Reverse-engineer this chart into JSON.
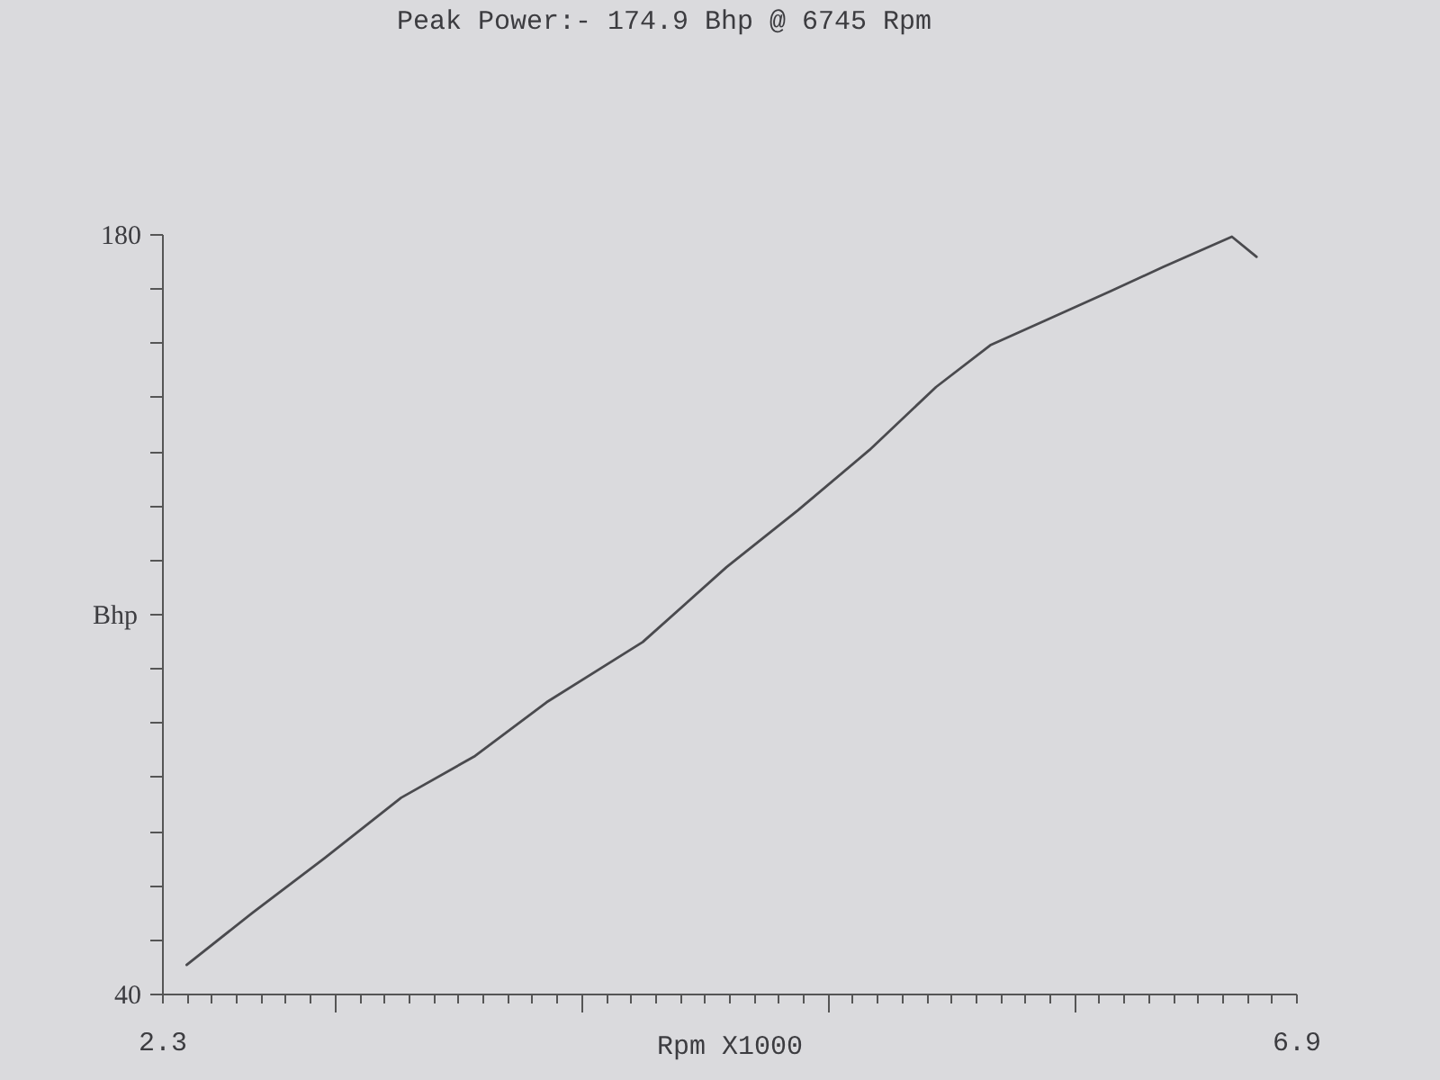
{
  "chart_data": {
    "type": "line",
    "title": "Peak Power:- 174.9 Bhp @ 6745 Rpm",
    "xlabel": "Rpm X1000",
    "ylabel": "Bhp",
    "x": [
      2.4,
      2.67,
      2.96,
      3.27,
      3.57,
      3.86,
      4.25,
      4.59,
      4.88,
      5.17,
      5.44,
      5.66,
      5.88,
      6.15,
      6.36,
      6.53,
      6.64,
      6.74
    ],
    "series": [
      {
        "color": "#4a4a4e",
        "values": [
          45.3,
          55.0,
          65.0,
          76.1,
          83.8,
          93.7,
          104.8,
          118.6,
          129.1,
          140.2,
          151.8,
          159.5,
          164.0,
          169.5,
          173.9,
          177.3,
          179.5,
          175.8
        ]
      }
    ],
    "xlim": [
      2.3,
      6.9
    ],
    "ylim": [
      40,
      180
    ],
    "xticks": [
      2.3,
      {
        "value": 2.4,
        "label": null
      },
      {
        "value": 2.5,
        "label": null
      },
      {
        "value": 2.6,
        "label": null
      },
      {
        "value": 2.7,
        "label": null
      },
      {
        "value": 2.8,
        "label": null
      },
      {
        "value": 2.9,
        "label": null
      },
      {
        "value": 3,
        "label": null
      },
      {
        "value": 3.1,
        "label": null
      },
      {
        "value": 3.2,
        "label": null
      },
      {
        "value": 3.3,
        "label": null
      },
      {
        "value": 3.4,
        "label": null
      },
      {
        "value": 3.5,
        "label": null
      },
      {
        "value": 3.6,
        "label": null
      },
      {
        "value": 3.7,
        "label": null
      },
      {
        "value": 3.8,
        "label": null
      },
      {
        "value": 3.9,
        "label": null
      },
      {
        "value": 4,
        "label": null
      },
      {
        "value": 4.1,
        "label": null
      },
      {
        "value": 4.2,
        "label": null
      },
      {
        "value": 4.3,
        "label": null
      },
      {
        "value": 4.4,
        "label": null
      },
      {
        "value": 4.5,
        "label": null
      },
      {
        "value": 4.6,
        "label": null
      },
      {
        "value": 4.7,
        "label": null
      },
      {
        "value": 4.8,
        "label": null
      },
      {
        "value": 4.9,
        "label": null
      },
      {
        "value": 5,
        "label": null
      },
      {
        "value": 5.1,
        "label": null
      },
      {
        "value": 5.2,
        "label": null
      },
      {
        "value": 5.3,
        "label": null
      },
      {
        "value": 5.4,
        "label": null
      },
      {
        "value": 5.5,
        "label": null
      },
      {
        "value": 5.6,
        "label": null
      },
      {
        "value": 5.7,
        "label": null
      },
      {
        "value": 5.8,
        "label": null
      },
      {
        "value": 5.9,
        "label": null
      },
      {
        "value": 6,
        "label": null
      },
      {
        "value": 6.1,
        "label": null
      },
      {
        "value": 6.2,
        "label": null
      },
      {
        "value": 6.3,
        "label": null
      },
      {
        "value": 6.4,
        "label": null
      },
      {
        "value": 6.5,
        "label": null
      },
      {
        "value": 6.6,
        "label": null
      },
      {
        "value": 6.7,
        "label": null
      },
      {
        "value": 6.8,
        "label": null
      },
      6.9
    ],
    "yticks": [
      40,
      {
        "value": 50,
        "label": null
      },
      {
        "value": 60,
        "label": null
      },
      {
        "value": 70,
        "label": null
      },
      {
        "value": 80,
        "label": null
      },
      {
        "value": 90,
        "label": null
      },
      {
        "value": 100,
        "label": null
      },
      {
        "value": 110,
        "label": null
      },
      {
        "value": 120,
        "label": null
      },
      {
        "value": 130,
        "label": null
      },
      {
        "value": 140,
        "label": null
      },
      {
        "value": 150,
        "label": null
      },
      {
        "value": 160,
        "label": null
      },
      {
        "value": 170,
        "label": null
      },
      180
    ]
  }
}
